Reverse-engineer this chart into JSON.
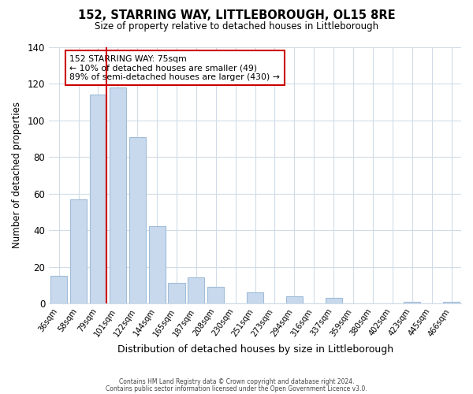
{
  "title": "152, STARRING WAY, LITTLEBOROUGH, OL15 8RE",
  "subtitle": "Size of property relative to detached houses in Littleborough",
  "xlabel": "Distribution of detached houses by size in Littleborough",
  "ylabel": "Number of detached properties",
  "bar_color": "#c8d9ed",
  "bar_edge_color": "#a0bcd8",
  "categories": [
    "36sqm",
    "58sqm",
    "79sqm",
    "101sqm",
    "122sqm",
    "144sqm",
    "165sqm",
    "187sqm",
    "208sqm",
    "230sqm",
    "251sqm",
    "273sqm",
    "294sqm",
    "316sqm",
    "337sqm",
    "359sqm",
    "380sqm",
    "402sqm",
    "423sqm",
    "445sqm",
    "466sqm"
  ],
  "values": [
    15,
    57,
    114,
    118,
    91,
    42,
    11,
    14,
    9,
    0,
    6,
    0,
    4,
    0,
    3,
    0,
    0,
    0,
    1,
    0,
    1
  ],
  "ylim": [
    0,
    140
  ],
  "yticks": [
    0,
    20,
    40,
    60,
    80,
    100,
    120,
    140
  ],
  "property_line_color": "#cc0000",
  "annotation_box_text": "152 STARRING WAY: 75sqm\n← 10% of detached houses are smaller (49)\n89% of semi-detached houses are larger (430) →",
  "footer_line1": "Contains HM Land Registry data © Crown copyright and database right 2024.",
  "footer_line2": "Contains public sector information licensed under the Open Government Licence v3.0.",
  "background_color": "#ffffff",
  "grid_color": "#d0dce8"
}
